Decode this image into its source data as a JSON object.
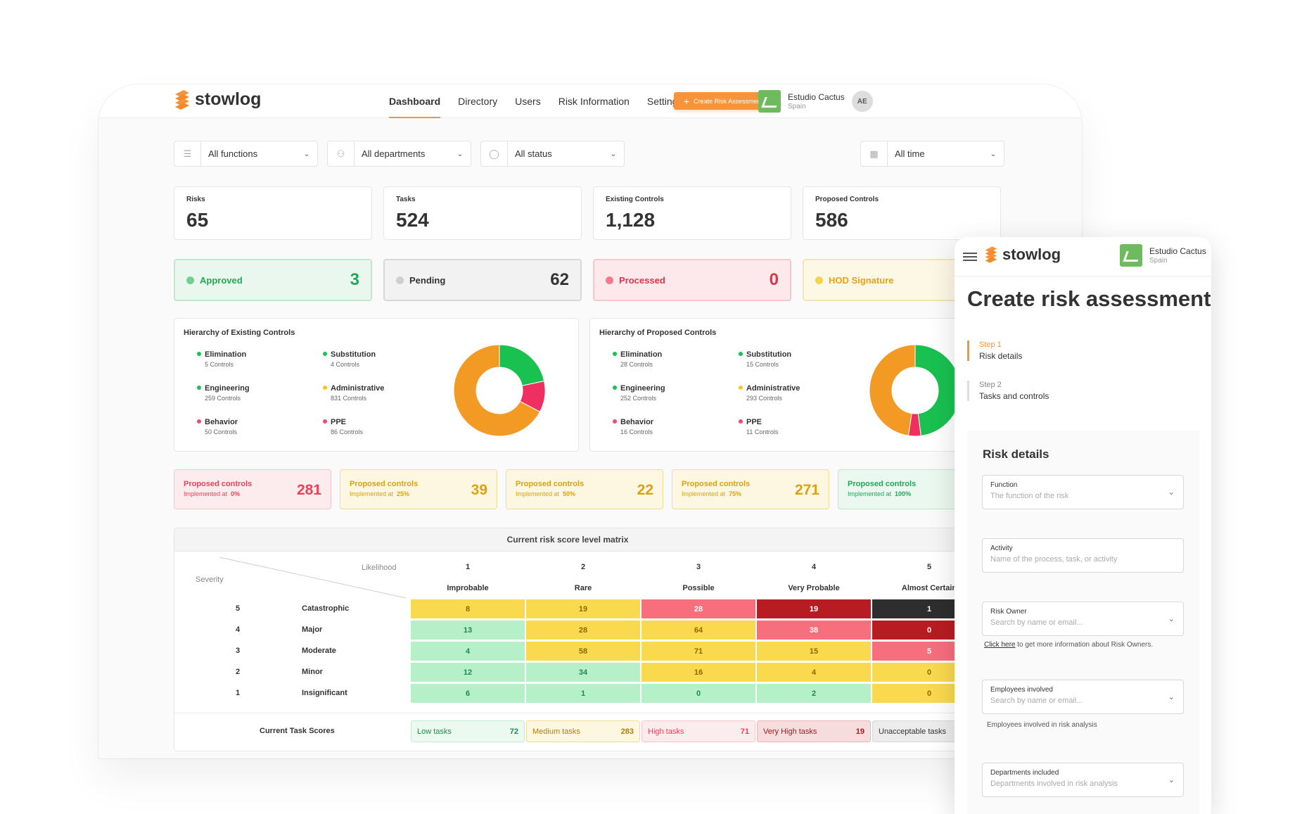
{
  "brand": {
    "name": "stowlog"
  },
  "nav": {
    "items": [
      "Dashboard",
      "Directory",
      "Users",
      "Risk Information",
      "Settings"
    ],
    "cta": "Create Risk Assessment"
  },
  "org": {
    "name": "Estudio Cactus",
    "country": "Spain",
    "initials": "AE"
  },
  "filters": {
    "functions": "All functions",
    "departments": "All departments",
    "status": "All status",
    "time": "All time"
  },
  "stats": [
    {
      "title": "Risks",
      "value": "65"
    },
    {
      "title": "Tasks",
      "value": "524"
    },
    {
      "title": "Existing Controls",
      "value": "1,128"
    },
    {
      "title": "Proposed Controls",
      "value": "586"
    }
  ],
  "statuses": [
    {
      "label": "Approved",
      "count": "3",
      "color": "#22a85a",
      "bg": "#e9f7ee",
      "border": "#bfe8cd",
      "dot": "#6fd18f"
    },
    {
      "label": "Pending",
      "count": "62",
      "color": "#333333",
      "bg": "#f2f2f2",
      "border": "#d8d8d8",
      "dot": "#cfcfcf"
    },
    {
      "label": "Processed",
      "count": "0",
      "color": "#e0334a",
      "bg": "#fde9eb",
      "border": "#f6c7cd",
      "dot": "#f57b8c"
    },
    {
      "label": "HOD Signature",
      "count": "",
      "color": "#e3a21a",
      "bg": "#fdf8e6",
      "border": "#f3e5b4",
      "dot": "#f5d34a"
    }
  ],
  "hierarchy_existing": {
    "title": "Hierarchy of Existing Controls",
    "items": [
      {
        "name": "Elimination",
        "count": "5 Controls",
        "color": "#19c150",
        "value": 5
      },
      {
        "name": "Substitution",
        "count": "4 Controls",
        "color": "#19c150",
        "value": 4
      },
      {
        "name": "Engineering",
        "count": "259 Controls",
        "color": "#19c150",
        "value": 259
      },
      {
        "name": "Administrative",
        "count": "831 Controls",
        "color": "#f2c81f",
        "value": 831
      },
      {
        "name": "Behavior",
        "count": "50 Controls",
        "color": "#f24b6a",
        "value": 50
      },
      {
        "name": "PPE",
        "count": "86 Controls",
        "color": "#f24b6a",
        "value": 86
      }
    ]
  },
  "hierarchy_proposed": {
    "title": "Hierarchy of Proposed Controls",
    "items": [
      {
        "name": "Elimination",
        "count": "28 Controls",
        "color": "#19c150",
        "value": 28
      },
      {
        "name": "Substitution",
        "count": "15 Controls",
        "color": "#19c150",
        "value": 15
      },
      {
        "name": "Engineering",
        "count": "252 Controls",
        "color": "#19c150",
        "value": 252
      },
      {
        "name": "Administrative",
        "count": "293 Controls",
        "color": "#f2c81f",
        "value": 293
      },
      {
        "name": "Behavior",
        "count": "16 Controls",
        "color": "#f24b6a",
        "value": 16
      },
      {
        "name": "PPE",
        "count": "11 Controls",
        "color": "#f24b6a",
        "value": 11
      }
    ]
  },
  "proposed": {
    "label": "Proposed controls",
    "impl": "Implemented at",
    "cards": [
      {
        "pct": "0%",
        "value": "281",
        "color": "#ef4058",
        "bg": "#fdeced",
        "border": "#f7c6cc"
      },
      {
        "pct": "25%",
        "value": "39",
        "color": "#d9a210",
        "bg": "#fdf7e2",
        "border": "#f1dc93"
      },
      {
        "pct": "50%",
        "value": "22",
        "color": "#d9a210",
        "bg": "#fdf7e2",
        "border": "#f1dc93"
      },
      {
        "pct": "75%",
        "value": "271",
        "color": "#d9a210",
        "bg": "#fdf7e2",
        "border": "#f1dc93"
      },
      {
        "pct": "100%",
        "value": "",
        "color": "#1fa85a",
        "bg": "#eaf8ef",
        "border": "#bfe8cd"
      }
    ]
  },
  "matrix": {
    "title": "Current risk score level matrix",
    "likelihood_label": "Likelihood",
    "severity_label": "Severity",
    "likelihood": [
      {
        "n": "1",
        "name": "Improbable"
      },
      {
        "n": "2",
        "name": "Rare"
      },
      {
        "n": "3",
        "name": "Possible"
      },
      {
        "n": "4",
        "name": "Very Probable"
      },
      {
        "n": "5",
        "name": "Almost Certain"
      }
    ],
    "rows": [
      {
        "n": "5",
        "name": "Catastrophic",
        "cells": [
          "8",
          "19",
          "28",
          "19",
          "1"
        ]
      },
      {
        "n": "4",
        "name": "Major",
        "cells": [
          "13",
          "28",
          "64",
          "38",
          "0"
        ]
      },
      {
        "n": "3",
        "name": "Moderate",
        "cells": [
          "4",
          "58",
          "71",
          "15",
          "5"
        ]
      },
      {
        "n": "2",
        "name": "Minor",
        "cells": [
          "12",
          "34",
          "16",
          "4",
          "0"
        ]
      },
      {
        "n": "1",
        "name": "Insignificant",
        "cells": [
          "6",
          "1",
          "0",
          "2",
          "0"
        ]
      }
    ],
    "levels": {
      "low": {
        "bg": "#b6f0c9",
        "fg": "#1f8a49"
      },
      "medium": {
        "bg": "#f9d94e",
        "fg": "#8a6a00"
      },
      "high": {
        "bg": "#f76e7d",
        "fg": "#ffffff"
      },
      "very_high": {
        "bg": "#b71c22",
        "fg": "#ffffff"
      },
      "unacceptable": {
        "bg": "#2e2e2e",
        "fg": "#ffffff"
      }
    },
    "level_map": [
      [
        "medium",
        "medium",
        "high",
        "very_high",
        "unacceptable"
      ],
      [
        "low",
        "medium",
        "medium",
        "high",
        "very_high"
      ],
      [
        "low",
        "medium",
        "medium",
        "medium",
        "high"
      ],
      [
        "low",
        "low",
        "medium",
        "medium",
        "medium"
      ],
      [
        "low",
        "low",
        "low",
        "low",
        "medium"
      ]
    ],
    "scores_label": "Current Task Scores",
    "scores": [
      {
        "label": "Low tasks",
        "value": "72",
        "fg": "#1f8a49",
        "bg": "#ecf9f0",
        "border": "#c3ebd0"
      },
      {
        "label": "Medium tasks",
        "value": "283",
        "fg": "#b07f00",
        "bg": "#fdf7e2",
        "border": "#f1dc93"
      },
      {
        "label": "High tasks",
        "value": "71",
        "fg": "#ef4058",
        "bg": "#fdeced",
        "border": "#f7c6cc"
      },
      {
        "label": "Very High tasks",
        "value": "19",
        "fg": "#a31b22",
        "bg": "#f6dcdd",
        "border": "#e6b6b9"
      },
      {
        "label": "Unacceptable tasks",
        "value": "",
        "fg": "#333333",
        "bg": "#ececec",
        "border": "#d8d8d8"
      }
    ]
  },
  "mobile": {
    "title": "Create risk assessment",
    "steps": [
      {
        "k": "Step 1",
        "d": "Risk details"
      },
      {
        "k": "Step 2",
        "d": "Tasks and controls"
      }
    ],
    "section": "Risk details",
    "fields": [
      {
        "label": "Function",
        "placeholder": "The function of the risk"
      },
      {
        "label": "Activity",
        "placeholder": "Name of the process, task, or activity"
      },
      {
        "label": "Risk Owner",
        "placeholder": "Search by name or email..."
      },
      {
        "label": "Employees involved",
        "placeholder": "Search by name or email..."
      },
      {
        "label": "Departments included",
        "placeholder": "Departments involved in risk analysis"
      }
    ],
    "owner_hint_link": "Click here",
    "owner_hint_rest": "to get more information about Risk Owners.",
    "employees_hint": "Employees involved in risk analysis"
  }
}
